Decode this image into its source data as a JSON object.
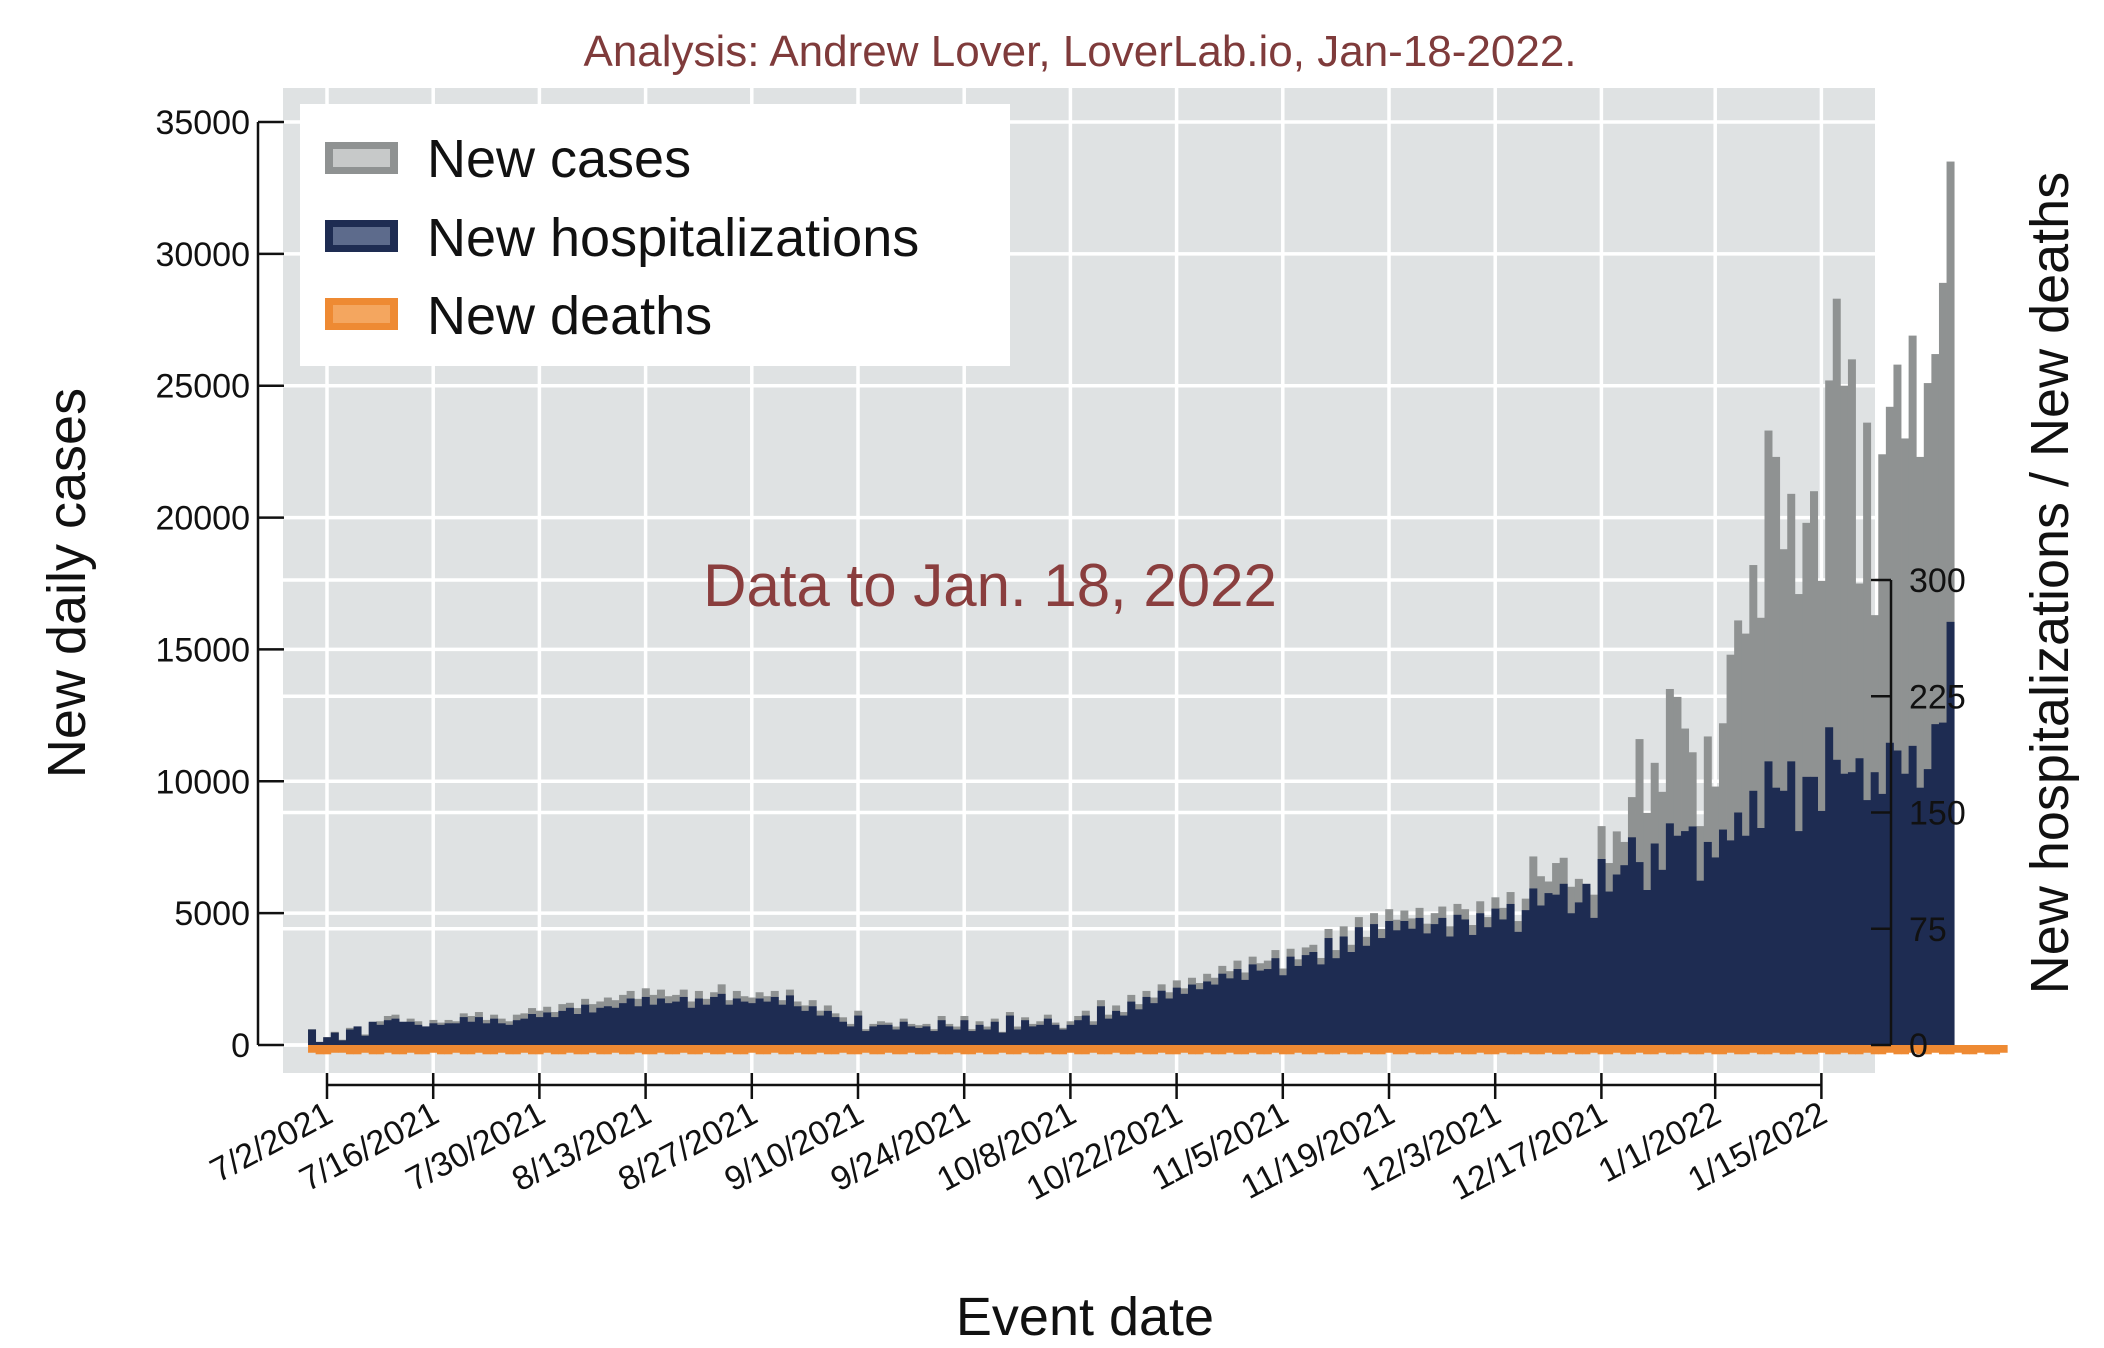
{
  "chart_data": {
    "type": "bar",
    "subtitle": "Analysis: Andrew Lover, LoverLab.io, Jan-18-2022.",
    "annotation": "Data to Jan. 18, 2022",
    "xlabel": "Event date",
    "ylabel_left": "New daily cases",
    "ylabel_right": "New hospitalizations / New deaths",
    "x_start": "2021-06-30",
    "x_end": "2022-01-18",
    "x_tick_labels": [
      "7/2/2021",
      "7/16/2021",
      "7/30/2021",
      "8/13/2021",
      "8/27/2021",
      "9/10/2021",
      "9/24/2021",
      "10/8/2021",
      "10/22/2021",
      "11/5/2021",
      "11/19/2021",
      "12/3/2021",
      "12/17/2021",
      "1/1/2022",
      "1/15/2022"
    ],
    "x_tick_dates": [
      "2021-07-02",
      "2021-07-16",
      "2021-07-30",
      "2021-08-13",
      "2021-08-27",
      "2021-09-10",
      "2021-09-24",
      "2021-10-08",
      "2021-10-22",
      "2021-11-05",
      "2021-11-19",
      "2021-12-03",
      "2021-12-17",
      "2022-01-01",
      "2022-01-15"
    ],
    "ylim_left": [
      0,
      35000
    ],
    "yticks_left": [
      0,
      5000,
      10000,
      15000,
      20000,
      25000,
      30000,
      35000
    ],
    "ylim_right": [
      0,
      300
    ],
    "yticks_right": [
      0,
      75,
      150,
      225,
      300
    ],
    "grid": true,
    "legend_position": "top-left",
    "series": [
      {
        "name": "New cases",
        "axis": "left",
        "color": "#8f9292",
        "values": [
          600,
          100,
          300,
          500,
          200,
          650,
          700,
          400,
          850,
          900,
          1100,
          1150,
          800,
          1000,
          900,
          700,
          950,
          850,
          950,
          900,
          1200,
          1100,
          1250,
          950,
          1150,
          1000,
          900,
          1150,
          1200,
          1400,
          1300,
          1450,
          1250,
          1550,
          1600,
          1400,
          1750,
          1550,
          1650,
          1800,
          1700,
          1900,
          2050,
          1750,
          2150,
          1900,
          2100,
          1850,
          1900,
          2100,
          1650,
          2050,
          1750,
          2000,
          2300,
          1700,
          2050,
          1850,
          1800,
          2000,
          1850,
          2050,
          1700,
          2100,
          1650,
          1500,
          1700,
          1300,
          1500,
          1200,
          1050,
          800,
          1300,
          600,
          800,
          900,
          850,
          700,
          1000,
          800,
          750,
          800,
          600,
          1100,
          800,
          700,
          1100,
          600,
          900,
          700,
          1000,
          500,
          1250,
          700,
          1050,
          800,
          900,
          1150,
          850,
          650,
          900,
          1100,
          1300,
          900,
          1700,
          1150,
          1500,
          1250,
          1900,
          1550,
          2050,
          1800,
          2300,
          2000,
          2450,
          2150,
          2550,
          2350,
          2700,
          2550,
          3000,
          2800,
          3200,
          2750,
          3350,
          3100,
          3200,
          3600,
          2900,
          3650,
          3250,
          3700,
          3800,
          3300,
          4400,
          3600,
          4500,
          3800,
          4850,
          4100,
          5000,
          4400,
          5150,
          4750,
          5100,
          4800,
          5200,
          4600,
          5000,
          5250,
          4500,
          5350,
          5150,
          4550,
          5450,
          4850,
          5600,
          5200,
          5800,
          4700,
          5550,
          7150,
          6400,
          6200,
          6900,
          7100,
          6000,
          6300,
          5950,
          5700,
          8300,
          6900,
          8100,
          7700,
          9400,
          11600,
          8800,
          10700,
          9600,
          13500,
          13200,
          12000,
          11100,
          8300,
          11700,
          9800,
          12200,
          14800,
          16100,
          15600,
          18200,
          16200,
          23300,
          22300,
          18800,
          20900,
          17100,
          19800,
          21000,
          17600,
          25200,
          28300,
          25000,
          26000,
          17500,
          23600,
          16300,
          22400,
          24200,
          25800,
          23000,
          26900,
          22300,
          25100,
          26200,
          28900,
          33500
        ]
      },
      {
        "name": "New hospitalizations",
        "axis": "right",
        "color": "#1e2c52",
        "values": [
          10,
          2,
          5,
          8,
          3,
          10,
          12,
          6,
          15,
          13,
          16,
          17,
          15,
          15,
          13,
          12,
          14,
          13,
          14,
          14,
          18,
          15,
          18,
          14,
          17,
          14,
          13,
          16,
          17,
          20,
          18,
          21,
          18,
          22,
          24,
          20,
          26,
          21,
          24,
          25,
          24,
          27,
          30,
          25,
          31,
          26,
          30,
          27,
          28,
          31,
          24,
          30,
          26,
          31,
          33,
          26,
          30,
          28,
          27,
          30,
          28,
          31,
          26,
          32,
          25,
          22,
          25,
          19,
          22,
          18,
          15,
          12,
          19,
          9,
          12,
          13,
          13,
          10,
          15,
          12,
          11,
          12,
          9,
          16,
          12,
          10,
          16,
          9,
          13,
          10,
          15,
          8,
          19,
          10,
          16,
          12,
          13,
          17,
          13,
          10,
          13,
          16,
          19,
          13,
          25,
          17,
          22,
          19,
          28,
          23,
          31,
          27,
          35,
          30,
          37,
          33,
          39,
          36,
          41,
          39,
          46,
          43,
          49,
          42,
          52,
          48,
          49,
          56,
          45,
          57,
          51,
          58,
          60,
          52,
          69,
          56,
          70,
          60,
          76,
          64,
          78,
          69,
          80,
          74,
          80,
          75,
          82,
          72,
          78,
          82,
          70,
          84,
          81,
          71,
          85,
          76,
          88,
          81,
          91,
          73,
          87,
          101,
          90,
          98,
          97,
          104,
          85,
          92,
          104,
          82,
          120,
          99,
          110,
          116,
          134,
          118,
          100,
          130,
          113,
          143,
          135,
          138,
          141,
          106,
          131,
          121,
          139,
          132,
          150,
          135,
          164,
          140,
          183,
          166,
          164,
          183,
          138,
          173,
          173,
          151,
          205,
          184,
          175,
          176,
          185,
          158,
          176,
          162,
          195,
          190,
          175,
          193,
          166,
          178,
          207,
          208,
          273
        ]
      },
      {
        "name": "New deaths",
        "axis": "right",
        "color": "#ee8a33",
        "values": [
          -5,
          -6,
          -6,
          -5,
          -5,
          -6,
          -6,
          -5,
          -6,
          -6,
          -5,
          -6,
          -6,
          -5,
          -6,
          -6,
          -5,
          -6,
          -6,
          -5,
          -6,
          -6,
          -5,
          -6,
          -6,
          -5,
          -6,
          -6,
          -5,
          -6,
          -6,
          -5,
          -6,
          -6,
          -5,
          -6,
          -6,
          -5,
          -6,
          -6,
          -5,
          -6,
          -6,
          -5,
          -6,
          -6,
          -5,
          -6,
          -6,
          -5,
          -6,
          -6,
          -5,
          -6,
          -6,
          -5,
          -6,
          -6,
          -5,
          -6,
          -6,
          -5,
          -6,
          -6,
          -5,
          -6,
          -6,
          -5,
          -6,
          -6,
          -5,
          -6,
          -6,
          -5,
          -6,
          -6,
          -5,
          -6,
          -6,
          -5,
          -6,
          -6,
          -5,
          -6,
          -6,
          -5,
          -6,
          -6,
          -5,
          -6,
          -6,
          -5,
          -6,
          -6,
          -5,
          -6,
          -6,
          -5,
          -6,
          -6,
          -5,
          -6,
          -6,
          -5,
          -6,
          -6,
          -5,
          -6,
          -6,
          -5,
          -6,
          -6,
          -5,
          -6,
          -6,
          -5,
          -6,
          -6,
          -5,
          -6,
          -6,
          -5,
          -6,
          -6,
          -5,
          -6,
          -6,
          -5,
          -6,
          -6,
          -5,
          -6,
          -6,
          -5,
          -6,
          -6,
          -5,
          -6,
          -6,
          -5,
          -6,
          -6,
          -5,
          -6,
          -6,
          -5,
          -6,
          -6,
          -5,
          -6,
          -6,
          -5,
          -6,
          -6,
          -5,
          -6,
          -6,
          -5,
          -6,
          -6,
          -5,
          -6,
          -6,
          -5,
          -6,
          -6,
          -5,
          -6,
          -6,
          -5,
          -6,
          -6,
          -5,
          -6,
          -6,
          -5,
          -6,
          -6,
          -5,
          -6,
          -6,
          -5,
          -6,
          -6,
          -5,
          -6,
          -6,
          -5,
          -6,
          -6,
          -5,
          -6,
          -6,
          -5,
          -6,
          -6,
          -5,
          -6,
          -6,
          -5,
          -6,
          -6,
          -5,
          -6,
          -6,
          -5,
          -6,
          -6,
          -5,
          -6,
          -6,
          -5,
          -6,
          -6,
          -5,
          -6,
          -6,
          -5,
          -6,
          -6,
          -5,
          -6,
          -6,
          -5
        ]
      }
    ]
  }
}
